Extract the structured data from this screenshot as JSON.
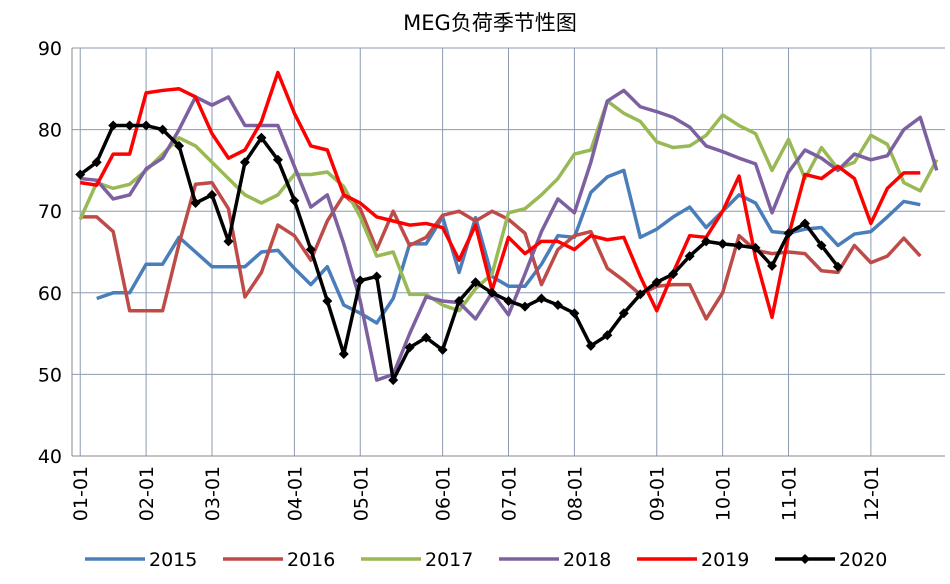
{
  "chart_data": {
    "type": "line",
    "title": "MEG负荷季节性图",
    "categories": [
      "01-01",
      null,
      null,
      null,
      "02-01",
      null,
      null,
      null,
      "03-01",
      null,
      null,
      null,
      null,
      "04-01",
      null,
      null,
      null,
      "05-01",
      null,
      null,
      null,
      null,
      "06-01",
      null,
      null,
      null,
      "07-01",
      null,
      null,
      null,
      "08-01",
      null,
      null,
      null,
      null,
      "09-01",
      null,
      null,
      null,
      "10-01",
      null,
      null,
      null,
      "11-01",
      null,
      null,
      null,
      null,
      "12-01",
      null,
      null,
      null,
      null
    ],
    "series": [
      {
        "name": "2015",
        "color": "#4a7ebb",
        "values": [
          null,
          59.3,
          60,
          60,
          63.5,
          63.5,
          66.8,
          65,
          63.2,
          63.2,
          63.2,
          65,
          65.2,
          63,
          61,
          63.2,
          58.5,
          57.5,
          56.3,
          59.3,
          66,
          66,
          69.3,
          62.5,
          69.2,
          62,
          60.8,
          60.8,
          63.5,
          67,
          66.8,
          72.3,
          74.2,
          75,
          66.8,
          67.8,
          69.3,
          70.5,
          68,
          70,
          72,
          71,
          67.5,
          67.3,
          67.8,
          68,
          65.8,
          67.2,
          67.5,
          69.3,
          71.2,
          70.8,
          null
        ]
      },
      {
        "name": "2016",
        "color": "#be4b48",
        "values": [
          69.3,
          69.3,
          67.5,
          57.8,
          57.8,
          57.8,
          66,
          73.3,
          73.5,
          70.3,
          59.5,
          62.5,
          68.3,
          67,
          64,
          68.8,
          72,
          70.3,
          65.3,
          70,
          65.8,
          66.8,
          69.5,
          70,
          68.8,
          70,
          69,
          67.3,
          61,
          65.3,
          67,
          67.5,
          63,
          61.5,
          59.8,
          60.8,
          61,
          61,
          56.8,
          60,
          67,
          65.2,
          64.8,
          65,
          64.8,
          62.7,
          62.5,
          65.8,
          63.7,
          64.5,
          66.7,
          64.5,
          null
        ]
      },
      {
        "name": "2017",
        "color": "#98b954",
        "values": [
          69,
          73.5,
          72.8,
          73.3,
          75,
          77,
          79,
          78,
          76,
          74,
          72,
          71,
          72,
          74.5,
          74.5,
          74.8,
          73,
          69.3,
          64.5,
          65,
          59.8,
          59.8,
          58.5,
          57.8,
          60.5,
          62.3,
          69.8,
          70.3,
          72,
          74,
          77,
          77.5,
          83.5,
          82,
          81,
          78.5,
          77.8,
          78,
          79.3,
          81.8,
          80.5,
          79.5,
          75,
          78.8,
          74,
          77.8,
          75.2,
          76,
          79.3,
          78.2,
          73.5,
          72.5,
          76.3
        ]
      },
      {
        "name": "2018",
        "color": "#7d60a0",
        "values": [
          74,
          73.8,
          71.5,
          72,
          75.2,
          76.5,
          80,
          84,
          83,
          84,
          80.5,
          80.5,
          80.5,
          75.5,
          70.5,
          72,
          66,
          59,
          49.3,
          50,
          55,
          59.5,
          59,
          58.8,
          56.8,
          60,
          57.3,
          62.3,
          67.5,
          71.5,
          69.8,
          76,
          83.5,
          84.8,
          82.8,
          82.2,
          81.5,
          80.3,
          78,
          77.3,
          76.5,
          75.8,
          69.8,
          74.8,
          77.5,
          76.5,
          75,
          77,
          76.3,
          76.8,
          80,
          81.5,
          75
        ]
      },
      {
        "name": "2019",
        "color": "#ff0000",
        "values": [
          73.5,
          73.2,
          77,
          77,
          84.5,
          84.8,
          85,
          84,
          79.5,
          76.5,
          77.5,
          81,
          87,
          82,
          78,
          77.5,
          72,
          71,
          69.3,
          68.8,
          68.3,
          68.5,
          68,
          64,
          68.3,
          60.3,
          66.8,
          64.8,
          66.3,
          66.3,
          65.3,
          67,
          66.5,
          66.8,
          62,
          57.8,
          62.5,
          67,
          66.8,
          70,
          74.3,
          64.3,
          57,
          67,
          74.5,
          74,
          75.5,
          74,
          68.5,
          72.8,
          74.7,
          74.7,
          null
        ]
      },
      {
        "name": "2020",
        "color": "#000000",
        "marker": "diamond",
        "values": [
          74.5,
          76,
          80.5,
          80.5,
          80.5,
          80,
          78,
          71,
          72,
          66.3,
          76,
          79,
          76.3,
          71.3,
          65.3,
          59,
          52.5,
          61.5,
          62,
          49.3,
          53.3,
          54.5,
          53,
          59,
          61.3,
          60,
          59,
          58.3,
          59.3,
          58.5,
          57.5,
          53.5,
          54.8,
          57.5,
          59.8,
          61.3,
          62.3,
          64.5,
          66.3,
          66,
          65.8,
          65.5,
          63.3,
          67.3,
          68.5,
          65.8,
          63.2,
          null,
          null,
          null,
          null,
          null,
          null
        ]
      }
    ],
    "ylim": [
      40,
      90
    ],
    "yticks": [
      40,
      50,
      60,
      70,
      80,
      90
    ],
    "grid": true,
    "legend": "bottom"
  }
}
